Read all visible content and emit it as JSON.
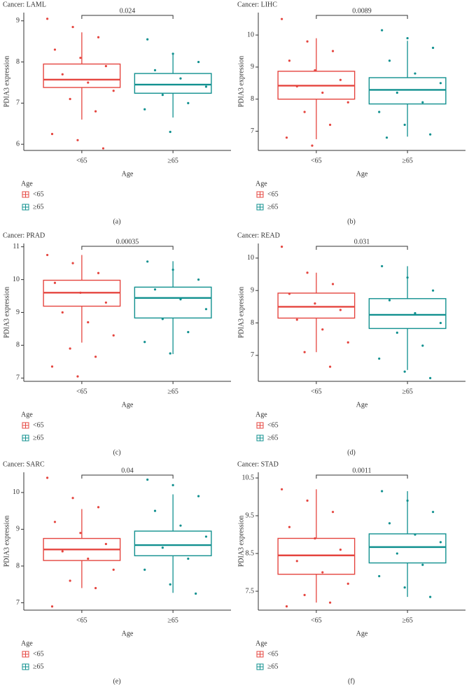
{
  "chart_data": [
    {
      "type": "box",
      "title": "Cancer: LAML",
      "annotation": "0.024",
      "ylabel": "PDIA3 expression",
      "xlabel": "Age",
      "legend_title": "Age",
      "panel_label": "(a)",
      "categories": [
        "<65",
        "≥65"
      ],
      "ylim": [
        5.85,
        9.2
      ],
      "yticks": [
        6,
        7,
        8,
        9
      ],
      "series": [
        {
          "name": "<65",
          "color": "#e5453f",
          "whisker_low": 6.6,
          "q1": 7.38,
          "median": 7.57,
          "q3": 7.95,
          "whisker_high": 8.72,
          "points": [
            9.05,
            8.85,
            8.6,
            8.3,
            8.1,
            7.9,
            7.7,
            7.5,
            7.3,
            7.1,
            6.8,
            6.25,
            6.1,
            5.9
          ]
        },
        {
          "name": "≥65",
          "color": "#10908f",
          "whisker_low": 6.65,
          "q1": 7.24,
          "median": 7.45,
          "q3": 7.72,
          "whisker_high": 8.22,
          "points": [
            8.55,
            8.2,
            8.0,
            7.8,
            7.6,
            7.4,
            7.2,
            7.0,
            6.85,
            6.3
          ]
        }
      ]
    },
    {
      "type": "box",
      "title": "Cancer: LIHC",
      "annotation": "0.0089",
      "ylabel": "PDIA3 expression",
      "xlabel": "Age",
      "legend_title": "Age",
      "panel_label": "(b)",
      "categories": [
        "<65",
        "≥65"
      ],
      "ylim": [
        6.4,
        10.7
      ],
      "yticks": [
        7,
        8,
        9,
        10
      ],
      "series": [
        {
          "name": "<65",
          "color": "#e5453f",
          "whisker_low": 6.75,
          "q1": 8.0,
          "median": 8.42,
          "q3": 8.87,
          "whisker_high": 9.9,
          "points": [
            10.5,
            9.8,
            9.5,
            9.2,
            8.9,
            8.6,
            8.4,
            8.2,
            7.9,
            7.6,
            7.2,
            6.8,
            6.55
          ]
        },
        {
          "name": "≥65",
          "color": "#10908f",
          "whisker_low": 6.83,
          "q1": 7.85,
          "median": 8.29,
          "q3": 8.67,
          "whisker_high": 9.82,
          "points": [
            10.15,
            9.9,
            9.6,
            9.2,
            8.8,
            8.5,
            8.2,
            7.9,
            7.6,
            7.2,
            6.9,
            6.8
          ]
        }
      ]
    },
    {
      "type": "box",
      "title": "Cancer: PRAD",
      "annotation": "0.00035",
      "ylabel": "PDIA3 expression",
      "xlabel": "Age",
      "legend_title": "Age",
      "panel_label": "(c)",
      "categories": [
        "<65",
        "≥65"
      ],
      "ylim": [
        6.9,
        11.1
      ],
      "yticks": [
        7,
        8,
        9,
        10,
        11
      ],
      "series": [
        {
          "name": "<65",
          "color": "#e5453f",
          "whisker_low": 8.08,
          "q1": 9.19,
          "median": 9.6,
          "q3": 9.98,
          "whisker_high": 10.75,
          "points": [
            10.75,
            10.5,
            10.2,
            9.9,
            9.6,
            9.3,
            9.0,
            8.7,
            8.3,
            7.9,
            7.65,
            7.35,
            7.05
          ]
        },
        {
          "name": "≥65",
          "color": "#10908f",
          "whisker_low": 7.73,
          "q1": 8.83,
          "median": 9.44,
          "q3": 9.77,
          "whisker_high": 10.56,
          "points": [
            10.55,
            10.3,
            10.0,
            9.7,
            9.4,
            9.1,
            8.8,
            8.4,
            8.1,
            7.75
          ]
        }
      ]
    },
    {
      "type": "box",
      "title": "Cancer: READ",
      "annotation": "0.031",
      "ylabel": "PDIA3 expression",
      "xlabel": "Age",
      "legend_title": "Age",
      "panel_label": "(d)",
      "categories": [
        "<65",
        "≥65"
      ],
      "ylim": [
        6.2,
        10.45
      ],
      "yticks": [
        7,
        8,
        9,
        10
      ],
      "series": [
        {
          "name": "<65",
          "color": "#e5453f",
          "whisker_low": 7.1,
          "q1": 8.15,
          "median": 8.5,
          "q3": 8.92,
          "whisker_high": 9.55,
          "points": [
            10.35,
            9.55,
            9.2,
            8.9,
            8.6,
            8.4,
            8.1,
            7.8,
            7.4,
            7.1,
            6.65
          ]
        },
        {
          "name": "≥65",
          "color": "#10908f",
          "whisker_low": 6.55,
          "q1": 7.83,
          "median": 8.25,
          "q3": 8.75,
          "whisker_high": 9.75,
          "points": [
            9.75,
            9.4,
            9.0,
            8.7,
            8.3,
            8.0,
            7.7,
            7.3,
            6.9,
            6.5,
            6.3
          ]
        }
      ]
    },
    {
      "type": "box",
      "title": "Cancer: SARC",
      "annotation": "0.04",
      "ylabel": "PDIA3 expression",
      "xlabel": "Age",
      "legend_title": "Age",
      "panel_label": "(e)",
      "categories": [
        "<65",
        "≥65"
      ],
      "ylim": [
        6.8,
        10.55
      ],
      "yticks": [
        7,
        8,
        9,
        10
      ],
      "series": [
        {
          "name": "<65",
          "color": "#e5453f",
          "whisker_low": 7.4,
          "q1": 8.15,
          "median": 8.45,
          "q3": 8.75,
          "whisker_high": 9.55,
          "points": [
            10.4,
            9.85,
            9.6,
            9.2,
            8.9,
            8.6,
            8.4,
            8.2,
            7.9,
            7.6,
            7.4,
            6.9
          ]
        },
        {
          "name": "≥65",
          "color": "#10908f",
          "whisker_low": 7.27,
          "q1": 8.28,
          "median": 8.57,
          "q3": 8.95,
          "whisker_high": 9.95,
          "points": [
            10.35,
            10.2,
            9.9,
            9.5,
            9.1,
            8.8,
            8.5,
            8.2,
            7.9,
            7.5,
            7.25
          ]
        }
      ]
    },
    {
      "type": "box",
      "title": "Cancer: STAD",
      "annotation": "0.0011",
      "ylabel": "PDIA3 expression",
      "xlabel": "Age",
      "legend_title": "Age",
      "panel_label": "(f)",
      "categories": [
        "<65",
        "≥65"
      ],
      "ylim": [
        7.0,
        10.65
      ],
      "yticks": [
        7.5,
        8.5,
        9.5,
        10.5
      ],
      "series": [
        {
          "name": "<65",
          "color": "#e5453f",
          "whisker_low": 7.2,
          "q1": 7.95,
          "median": 8.45,
          "q3": 8.9,
          "whisker_high": 10.2,
          "points": [
            10.2,
            9.9,
            9.6,
            9.2,
            8.9,
            8.6,
            8.3,
            8.0,
            7.7,
            7.4,
            7.2,
            7.1
          ]
        },
        {
          "name": "≥65",
          "color": "#10908f",
          "whisker_low": 7.35,
          "q1": 8.25,
          "median": 8.67,
          "q3": 9.02,
          "whisker_high": 10.15,
          "points": [
            10.15,
            9.9,
            9.6,
            9.3,
            9.0,
            8.8,
            8.5,
            8.2,
            7.9,
            7.6,
            7.35
          ]
        }
      ]
    }
  ]
}
